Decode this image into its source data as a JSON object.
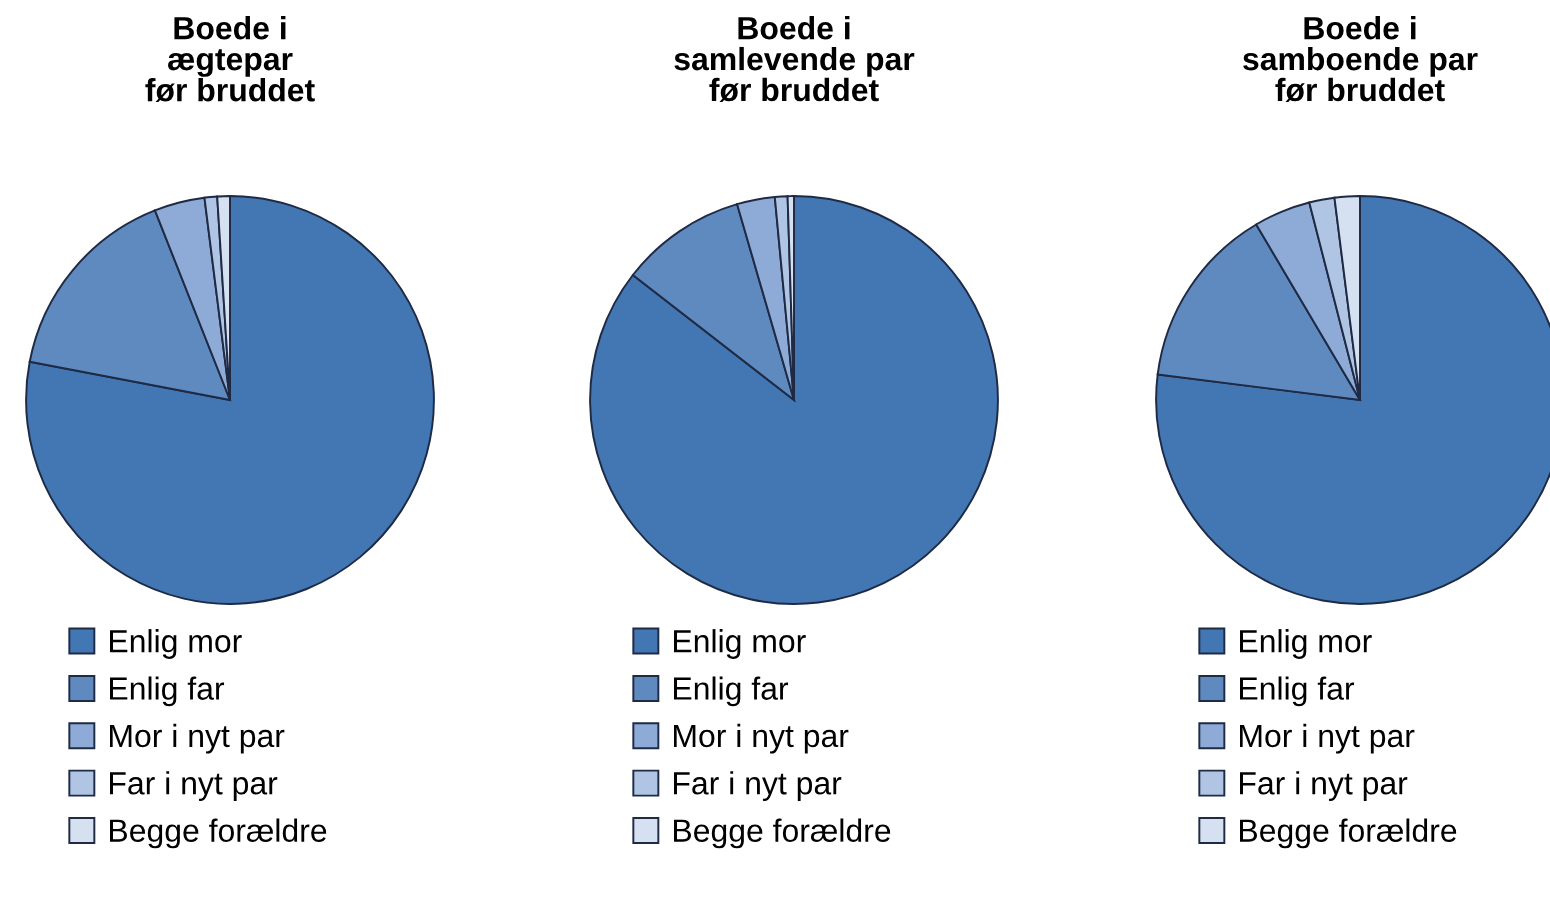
{
  "chart_data": [
    {
      "type": "pie",
      "title": "Boede i\nægtepar\nfør bruddet",
      "categories": [
        "Enlig mor",
        "Enlig far",
        "Mor i nyt par",
        "Far i nyt par",
        "Begge forældre"
      ],
      "values": [
        78,
        16,
        4,
        1,
        1
      ],
      "colors": [
        "#4277b3",
        "#5f8ac0",
        "#8eaad6",
        "#b0c4e4",
        "#d5e0f0"
      ],
      "legend": "bottom"
    },
    {
      "type": "pie",
      "title": "Boede i\nsamlevende par\nfør bruddet",
      "categories": [
        "Enlig mor",
        "Enlig far",
        "Mor i nyt par",
        "Far i nyt par",
        "Begge forældre"
      ],
      "values": [
        85.5,
        10,
        3,
        1,
        0.5
      ],
      "colors": [
        "#4277b3",
        "#5f8ac0",
        "#8eaad6",
        "#b0c4e4",
        "#d5e0f0"
      ],
      "legend": "bottom"
    },
    {
      "type": "pie",
      "title": "Boede i\nsamboende par\nfør bruddet",
      "categories": [
        "Enlig mor",
        "Enlig far",
        "Mor i nyt par",
        "Far i nyt par",
        "Begge forældre"
      ],
      "values": [
        77,
        14.5,
        4.5,
        2,
        2
      ],
      "colors": [
        "#4277b3",
        "#5f8ac0",
        "#8eaad6",
        "#b0c4e4",
        "#d5e0f0"
      ],
      "legend": "bottom"
    }
  ]
}
